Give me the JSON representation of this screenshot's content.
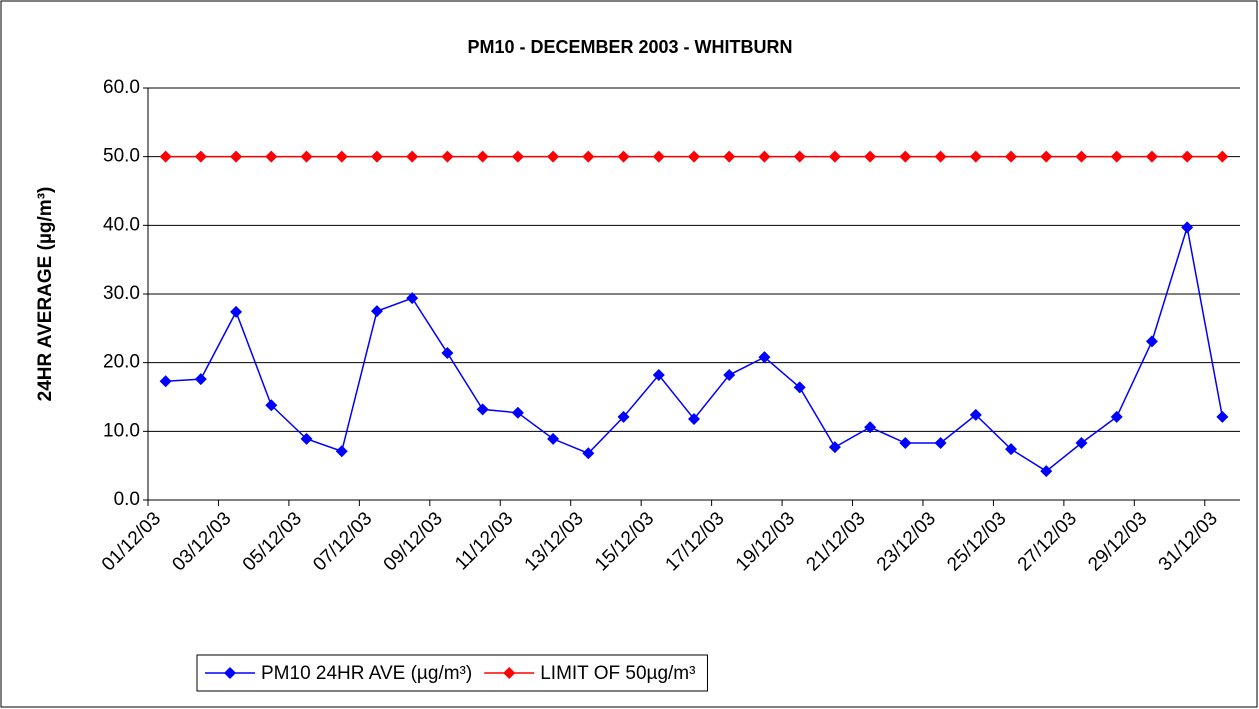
{
  "chart_data": {
    "type": "line",
    "title": "PM10 - DECEMBER 2003 - WHITBURN",
    "y_label": "24HR AVERAGE (µg/m³)",
    "categories": [
      "01/12/03",
      null,
      "03/12/03",
      null,
      "05/12/03",
      null,
      "07/12/03",
      null,
      "09/12/03",
      null,
      "11/12/03",
      null,
      "13/12/03",
      null,
      "15/12/03",
      null,
      "17/12/03",
      null,
      "19/12/03",
      null,
      "21/12/03",
      null,
      "23/12/03",
      null,
      "25/12/03",
      null,
      "27/12/03",
      null,
      "29/12/03",
      null,
      "31/12/03"
    ],
    "series": [
      {
        "name": "PM10 24HR AVE (µg/m³)",
        "color": "#0000ff",
        "values": [
          17.3,
          17.6,
          27.4,
          13.8,
          8.9,
          7.1,
          27.5,
          29.4,
          21.4,
          13.2,
          12.7,
          8.9,
          6.8,
          12.1,
          18.2,
          11.8,
          18.2,
          20.8,
          16.4,
          7.7,
          10.6,
          8.3,
          8.3,
          12.4,
          7.4,
          4.2,
          8.3,
          12.1,
          23.1,
          39.7,
          12.1
        ]
      },
      {
        "name": "LIMIT OF 50µg/m³",
        "color": "#ff0000",
        "values": [
          50,
          50,
          50,
          50,
          50,
          50,
          50,
          50,
          50,
          50,
          50,
          50,
          50,
          50,
          50,
          50,
          50,
          50,
          50,
          50,
          50,
          50,
          50,
          50,
          50,
          50,
          50,
          50,
          50,
          50,
          50
        ]
      }
    ],
    "ylim": [
      0,
      60
    ],
    "yticks": [
      {
        "value": 0,
        "label": "0.0"
      },
      {
        "value": 10,
        "label": "10.0"
      },
      {
        "value": 20,
        "label": "20.0"
      },
      {
        "value": 30,
        "label": "30.0"
      },
      {
        "value": 40,
        "label": "40.0"
      },
      {
        "value": 50,
        "label": "50.0"
      },
      {
        "value": 60,
        "label": "60.0"
      }
    ],
    "grid": true,
    "legend": "bottom"
  }
}
